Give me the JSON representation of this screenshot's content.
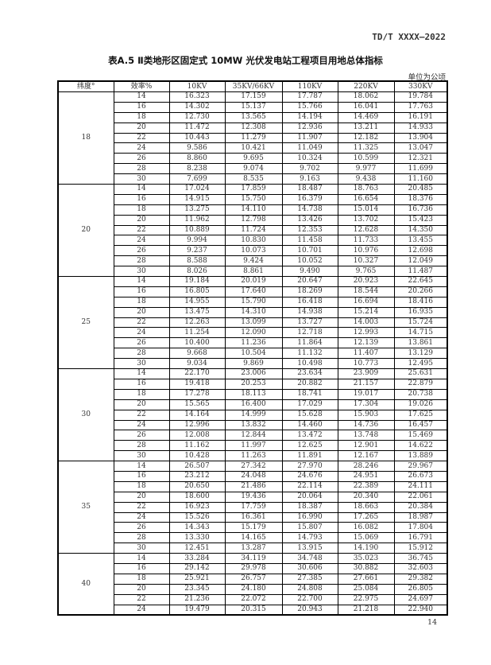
{
  "header": {
    "doc_id": "TD/T XXXX—2022"
  },
  "table": {
    "title": "表A.5 Ⅱ类地形区固定式 10MW 光伏发电站工程项目用地总体指标",
    "unit": "单位为公顷",
    "columns": [
      "纬度°",
      "效率%",
      "10KV",
      "35KV/66KV",
      "110KV",
      "220KV",
      "330KV"
    ],
    "groups": [
      {
        "latitude": "18",
        "rows": [
          [
            "14",
            "16.323",
            "17.159",
            "17.787",
            "18.062",
            "19.784"
          ],
          [
            "16",
            "14.302",
            "15.137",
            "15.766",
            "16.041",
            "17.763"
          ],
          [
            "18",
            "12.730",
            "13.565",
            "14.194",
            "14.469",
            "16.191"
          ],
          [
            "20",
            "11.472",
            "12.308",
            "12.936",
            "13.211",
            "14.933"
          ],
          [
            "22",
            "10.443",
            "11.279",
            "11.907",
            "12.182",
            "13.904"
          ],
          [
            "24",
            "9.586",
            "10.421",
            "11.049",
            "11.325",
            "13.047"
          ],
          [
            "26",
            "8.860",
            "9.695",
            "10.324",
            "10.599",
            "12.321"
          ],
          [
            "28",
            "8.238",
            "9.074",
            "9.702",
            "9.977",
            "11.699"
          ],
          [
            "30",
            "7.699",
            "8.535",
            "9.163",
            "9.438",
            "11.160"
          ]
        ]
      },
      {
        "latitude": "20",
        "rows": [
          [
            "14",
            "17.024",
            "17.859",
            "18.487",
            "18.763",
            "20.485"
          ],
          [
            "16",
            "14.915",
            "15.750",
            "16.379",
            "16.654",
            "18.376"
          ],
          [
            "18",
            "13.275",
            "14.110",
            "14.738",
            "15.014",
            "16.736"
          ],
          [
            "20",
            "11.962",
            "12.798",
            "13.426",
            "13.702",
            "15.423"
          ],
          [
            "22",
            "10.889",
            "11.724",
            "12.353",
            "12.628",
            "14.350"
          ],
          [
            "24",
            "9.994",
            "10.830",
            "11.458",
            "11.733",
            "13.455"
          ],
          [
            "26",
            "9.237",
            "10.073",
            "10.701",
            "10.976",
            "12.698"
          ],
          [
            "28",
            "8.588",
            "9.424",
            "10.052",
            "10.327",
            "12.049"
          ],
          [
            "30",
            "8.026",
            "8.861",
            "9.490",
            "9.765",
            "11.487"
          ]
        ]
      },
      {
        "latitude": "25",
        "rows": [
          [
            "14",
            "19.184",
            "20.019",
            "20.647",
            "20.923",
            "22.645"
          ],
          [
            "16",
            "16.805",
            "17.640",
            "18.269",
            "18.544",
            "20.266"
          ],
          [
            "18",
            "14.955",
            "15.790",
            "16.418",
            "16.694",
            "18.416"
          ],
          [
            "20",
            "13.475",
            "14.310",
            "14.938",
            "15.214",
            "16.935"
          ],
          [
            "22",
            "12.263",
            "13.099",
            "13.727",
            "14.003",
            "15.724"
          ],
          [
            "24",
            "11.254",
            "12.090",
            "12.718",
            "12.993",
            "14.715"
          ],
          [
            "26",
            "10.400",
            "11.236",
            "11.864",
            "12.139",
            "13.861"
          ],
          [
            "28",
            "9.668",
            "10.504",
            "11.132",
            "11.407",
            "13.129"
          ],
          [
            "30",
            "9.034",
            "9.869",
            "10.498",
            "10.773",
            "12.495"
          ]
        ]
      },
      {
        "latitude": "30",
        "rows": [
          [
            "14",
            "22.170",
            "23.006",
            "23.634",
            "23.909",
            "25.631"
          ],
          [
            "16",
            "19.418",
            "20.253",
            "20.882",
            "21.157",
            "22.879"
          ],
          [
            "18",
            "17.278",
            "18.113",
            "18.741",
            "19.017",
            "20.738"
          ],
          [
            "20",
            "15.565",
            "16.400",
            "17.029",
            "17.304",
            "19.026"
          ],
          [
            "22",
            "14.164",
            "14.999",
            "15.628",
            "15.903",
            "17.625"
          ],
          [
            "24",
            "12.996",
            "13.832",
            "14.460",
            "14.736",
            "16.457"
          ],
          [
            "26",
            "12.008",
            "12.844",
            "13.472",
            "13.748",
            "15.469"
          ],
          [
            "28",
            "11.162",
            "11.997",
            "12.625",
            "12.901",
            "14.622"
          ],
          [
            "30",
            "10.428",
            "11.263",
            "11.891",
            "12.167",
            "13.889"
          ]
        ]
      },
      {
        "latitude": "35",
        "rows": [
          [
            "14",
            "26.507",
            "27.342",
            "27.970",
            "28.246",
            "29.967"
          ],
          [
            "16",
            "23.212",
            "24.048",
            "24.676",
            "24.951",
            "26.673"
          ],
          [
            "18",
            "20.650",
            "21.486",
            "22.114",
            "22.389",
            "24.111"
          ],
          [
            "20",
            "18.600",
            "19.436",
            "20.064",
            "20.340",
            "22.061"
          ],
          [
            "22",
            "16.923",
            "17.759",
            "18.387",
            "18.663",
            "20.384"
          ],
          [
            "24",
            "15.526",
            "16.361",
            "16.990",
            "17.265",
            "18.987"
          ],
          [
            "26",
            "14.343",
            "15.179",
            "15.807",
            "16.082",
            "17.804"
          ],
          [
            "28",
            "13.330",
            "14.165",
            "14.793",
            "15.069",
            "16.791"
          ],
          [
            "30",
            "12.451",
            "13.287",
            "13.915",
            "14.190",
            "15.912"
          ]
        ]
      },
      {
        "latitude": "40",
        "rows": [
          [
            "14",
            "33.284",
            "34.119",
            "34.748",
            "35.023",
            "36.745"
          ],
          [
            "16",
            "29.142",
            "29.978",
            "30.606",
            "30.882",
            "32.603"
          ],
          [
            "18",
            "25.921",
            "26.757",
            "27.385",
            "27.661",
            "29.382"
          ],
          [
            "20",
            "23.345",
            "24.180",
            "24.808",
            "25.084",
            "26.805"
          ],
          [
            "22",
            "21.236",
            "22.072",
            "22.700",
            "22.975",
            "24.697"
          ],
          [
            "24",
            "19.479",
            "20.315",
            "20.943",
            "21.218",
            "22.940"
          ]
        ]
      }
    ]
  },
  "footer": {
    "page_number": "14"
  }
}
